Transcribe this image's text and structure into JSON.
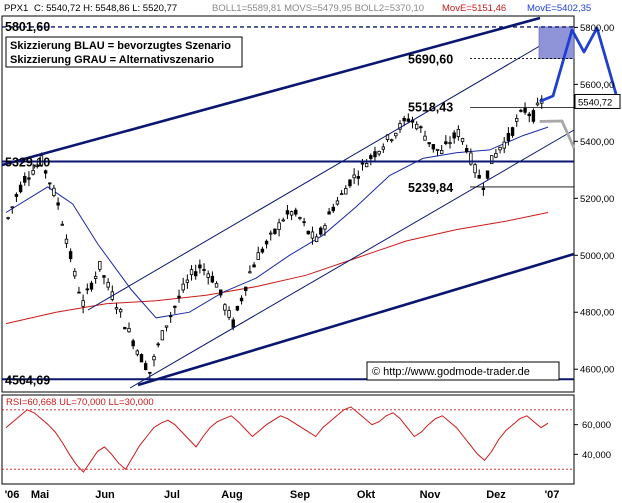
{
  "header": {
    "symbol": "PPX1",
    "ohlc": "C: 5540,72 H: 5548,86 L: 5520,77",
    "indicators": "BOLL1=5589,81 MOVS=5479,95 BOLL2=5370,10",
    "move_red": "MovE=5151,46",
    "move_blue": "MovE=5402,35"
  },
  "legend": {
    "line1": "Skizzierung BLAU = bevorzugtes Szenario",
    "line2": "Skizzierung GRAU = Alternativszenario"
  },
  "source": "© http://www.godmode-trader.de",
  "levels": [
    {
      "label": "5801,60",
      "value": 5801.6
    },
    {
      "label": "5690,60",
      "value": 5690.6
    },
    {
      "label": "5518,43",
      "value": 5518.43
    },
    {
      "label": "5329,10",
      "value": 5329.1
    },
    {
      "label": "5239,84",
      "value": 5239.84
    },
    {
      "label": "4564,69",
      "value": 4564.69
    }
  ],
  "last_price_label": "5540,72",
  "rsi_label": "RSI=60,668 UL=70,000 LL=30,000",
  "colors": {
    "candle": "#000000",
    "ma_short": "#1a2aa8",
    "ma_long": "#cc1a1a",
    "trend": "#0a1670",
    "scenario_blue": "#1e3fd0",
    "scenario_gray": "#a8a8a8",
    "zone": "#8f93d8",
    "rsi": "#cc1a1a"
  },
  "chart_data": [
    {
      "type": "line",
      "y_axis_ticks": [
        4600,
        4800,
        5000,
        5200,
        5400,
        5600,
        5800
      ],
      "y_axis_labels": [
        "4600,00",
        "4800,00",
        "5000,00",
        "5200,00",
        "5400,00",
        "5600,00",
        "5800,00"
      ],
      "ylim": [
        4520,
        5840
      ],
      "x_labels": [
        "'06",
        "Mai",
        "Jun",
        "Jul",
        "Aug",
        "Sep",
        "Okt",
        "Nov",
        "Dez",
        "'07"
      ],
      "close_points": [
        {
          "t": 0,
          "v": 5130
        },
        {
          "t": 2,
          "v": 5210
        },
        {
          "t": 4,
          "v": 5270
        },
        {
          "t": 6,
          "v": 5300
        },
        {
          "t": 8,
          "v": 5330
        },
        {
          "t": 10,
          "v": 5260
        },
        {
          "t": 12,
          "v": 5180
        },
        {
          "t": 14,
          "v": 5060
        },
        {
          "t": 16,
          "v": 4930
        },
        {
          "t": 18,
          "v": 4830
        },
        {
          "t": 20,
          "v": 4900
        },
        {
          "t": 22,
          "v": 4960
        },
        {
          "t": 24,
          "v": 4890
        },
        {
          "t": 26,
          "v": 4830
        },
        {
          "t": 28,
          "v": 4760
        },
        {
          "t": 30,
          "v": 4700
        },
        {
          "t": 32,
          "v": 4640
        },
        {
          "t": 34,
          "v": 4590
        },
        {
          "t": 36,
          "v": 4680
        },
        {
          "t": 38,
          "v": 4760
        },
        {
          "t": 40,
          "v": 4820
        },
        {
          "t": 42,
          "v": 4880
        },
        {
          "t": 44,
          "v": 4930
        },
        {
          "t": 46,
          "v": 4960
        },
        {
          "t": 48,
          "v": 4940
        },
        {
          "t": 50,
          "v": 4900
        },
        {
          "t": 52,
          "v": 4820
        },
        {
          "t": 54,
          "v": 4760
        },
        {
          "t": 56,
          "v": 4850
        },
        {
          "t": 58,
          "v": 4940
        },
        {
          "t": 60,
          "v": 5000
        },
        {
          "t": 62,
          "v": 5040
        },
        {
          "t": 64,
          "v": 5080
        },
        {
          "t": 66,
          "v": 5130
        },
        {
          "t": 68,
          "v": 5150
        },
        {
          "t": 70,
          "v": 5130
        },
        {
          "t": 72,
          "v": 5080
        },
        {
          "t": 74,
          "v": 5050
        },
        {
          "t": 76,
          "v": 5110
        },
        {
          "t": 78,
          "v": 5170
        },
        {
          "t": 80,
          "v": 5210
        },
        {
          "t": 82,
          "v": 5260
        },
        {
          "t": 84,
          "v": 5290
        },
        {
          "t": 86,
          "v": 5330
        },
        {
          "t": 88,
          "v": 5360
        },
        {
          "t": 90,
          "v": 5390
        },
        {
          "t": 92,
          "v": 5420
        },
        {
          "t": 94,
          "v": 5450
        },
        {
          "t": 96,
          "v": 5480
        },
        {
          "t": 98,
          "v": 5460
        },
        {
          "t": 100,
          "v": 5420
        },
        {
          "t": 102,
          "v": 5380
        },
        {
          "t": 104,
          "v": 5360
        },
        {
          "t": 106,
          "v": 5400
        },
        {
          "t": 108,
          "v": 5430
        },
        {
          "t": 110,
          "v": 5380
        },
        {
          "t": 112,
          "v": 5300
        },
        {
          "t": 114,
          "v": 5250
        },
        {
          "t": 116,
          "v": 5330
        },
        {
          "t": 118,
          "v": 5380
        },
        {
          "t": 120,
          "v": 5410
        },
        {
          "t": 122,
          "v": 5470
        },
        {
          "t": 124,
          "v": 5510
        },
        {
          "t": 126,
          "v": 5490
        },
        {
          "t": 128,
          "v": 5540
        }
      ],
      "ma_short": [
        {
          "t": 0,
          "v": 5150
        },
        {
          "t": 10,
          "v": 5240
        },
        {
          "t": 16,
          "v": 5180
        },
        {
          "t": 22,
          "v": 5040
        },
        {
          "t": 30,
          "v": 4880
        },
        {
          "t": 36,
          "v": 4780
        },
        {
          "t": 44,
          "v": 4800
        },
        {
          "t": 52,
          "v": 4870
        },
        {
          "t": 60,
          "v": 4920
        },
        {
          "t": 68,
          "v": 5000
        },
        {
          "t": 76,
          "v": 5070
        },
        {
          "t": 84,
          "v": 5170
        },
        {
          "t": 92,
          "v": 5280
        },
        {
          "t": 100,
          "v": 5340
        },
        {
          "t": 108,
          "v": 5360
        },
        {
          "t": 116,
          "v": 5370
        },
        {
          "t": 124,
          "v": 5420
        },
        {
          "t": 130,
          "v": 5450
        }
      ],
      "ma_long": [
        {
          "t": 0,
          "v": 4760
        },
        {
          "t": 12,
          "v": 4800
        },
        {
          "t": 24,
          "v": 4830
        },
        {
          "t": 36,
          "v": 4840
        },
        {
          "t": 48,
          "v": 4860
        },
        {
          "t": 60,
          "v": 4890
        },
        {
          "t": 72,
          "v": 4930
        },
        {
          "t": 84,
          "v": 4990
        },
        {
          "t": 96,
          "v": 5050
        },
        {
          "t": 108,
          "v": 5090
        },
        {
          "t": 120,
          "v": 5120
        },
        {
          "t": 130,
          "v": 5150
        }
      ]
    },
    {
      "type": "line",
      "name": "RSI",
      "ylim": [
        20,
        80
      ],
      "upper": 70,
      "lower": 30,
      "y_axis_ticks": [
        40,
        60
      ],
      "y_axis_labels": [
        "40,000",
        "60,000"
      ],
      "values": [
        58,
        62,
        66,
        70,
        68,
        64,
        60,
        55,
        48,
        40,
        33,
        28,
        35,
        42,
        45,
        40,
        34,
        30,
        38,
        46,
        52,
        58,
        61,
        63,
        60,
        55,
        50,
        45,
        52,
        58,
        62,
        64,
        66,
        62,
        57,
        52,
        56,
        60,
        63,
        66,
        64,
        61,
        58,
        55,
        52,
        58,
        62,
        66,
        70,
        72,
        68,
        64,
        60,
        62,
        66,
        68,
        64,
        58,
        52,
        55,
        60,
        64,
        66,
        62,
        58,
        52,
        46,
        40,
        36,
        42,
        50,
        56,
        60,
        64,
        66,
        62,
        58,
        61
      ]
    }
  ]
}
